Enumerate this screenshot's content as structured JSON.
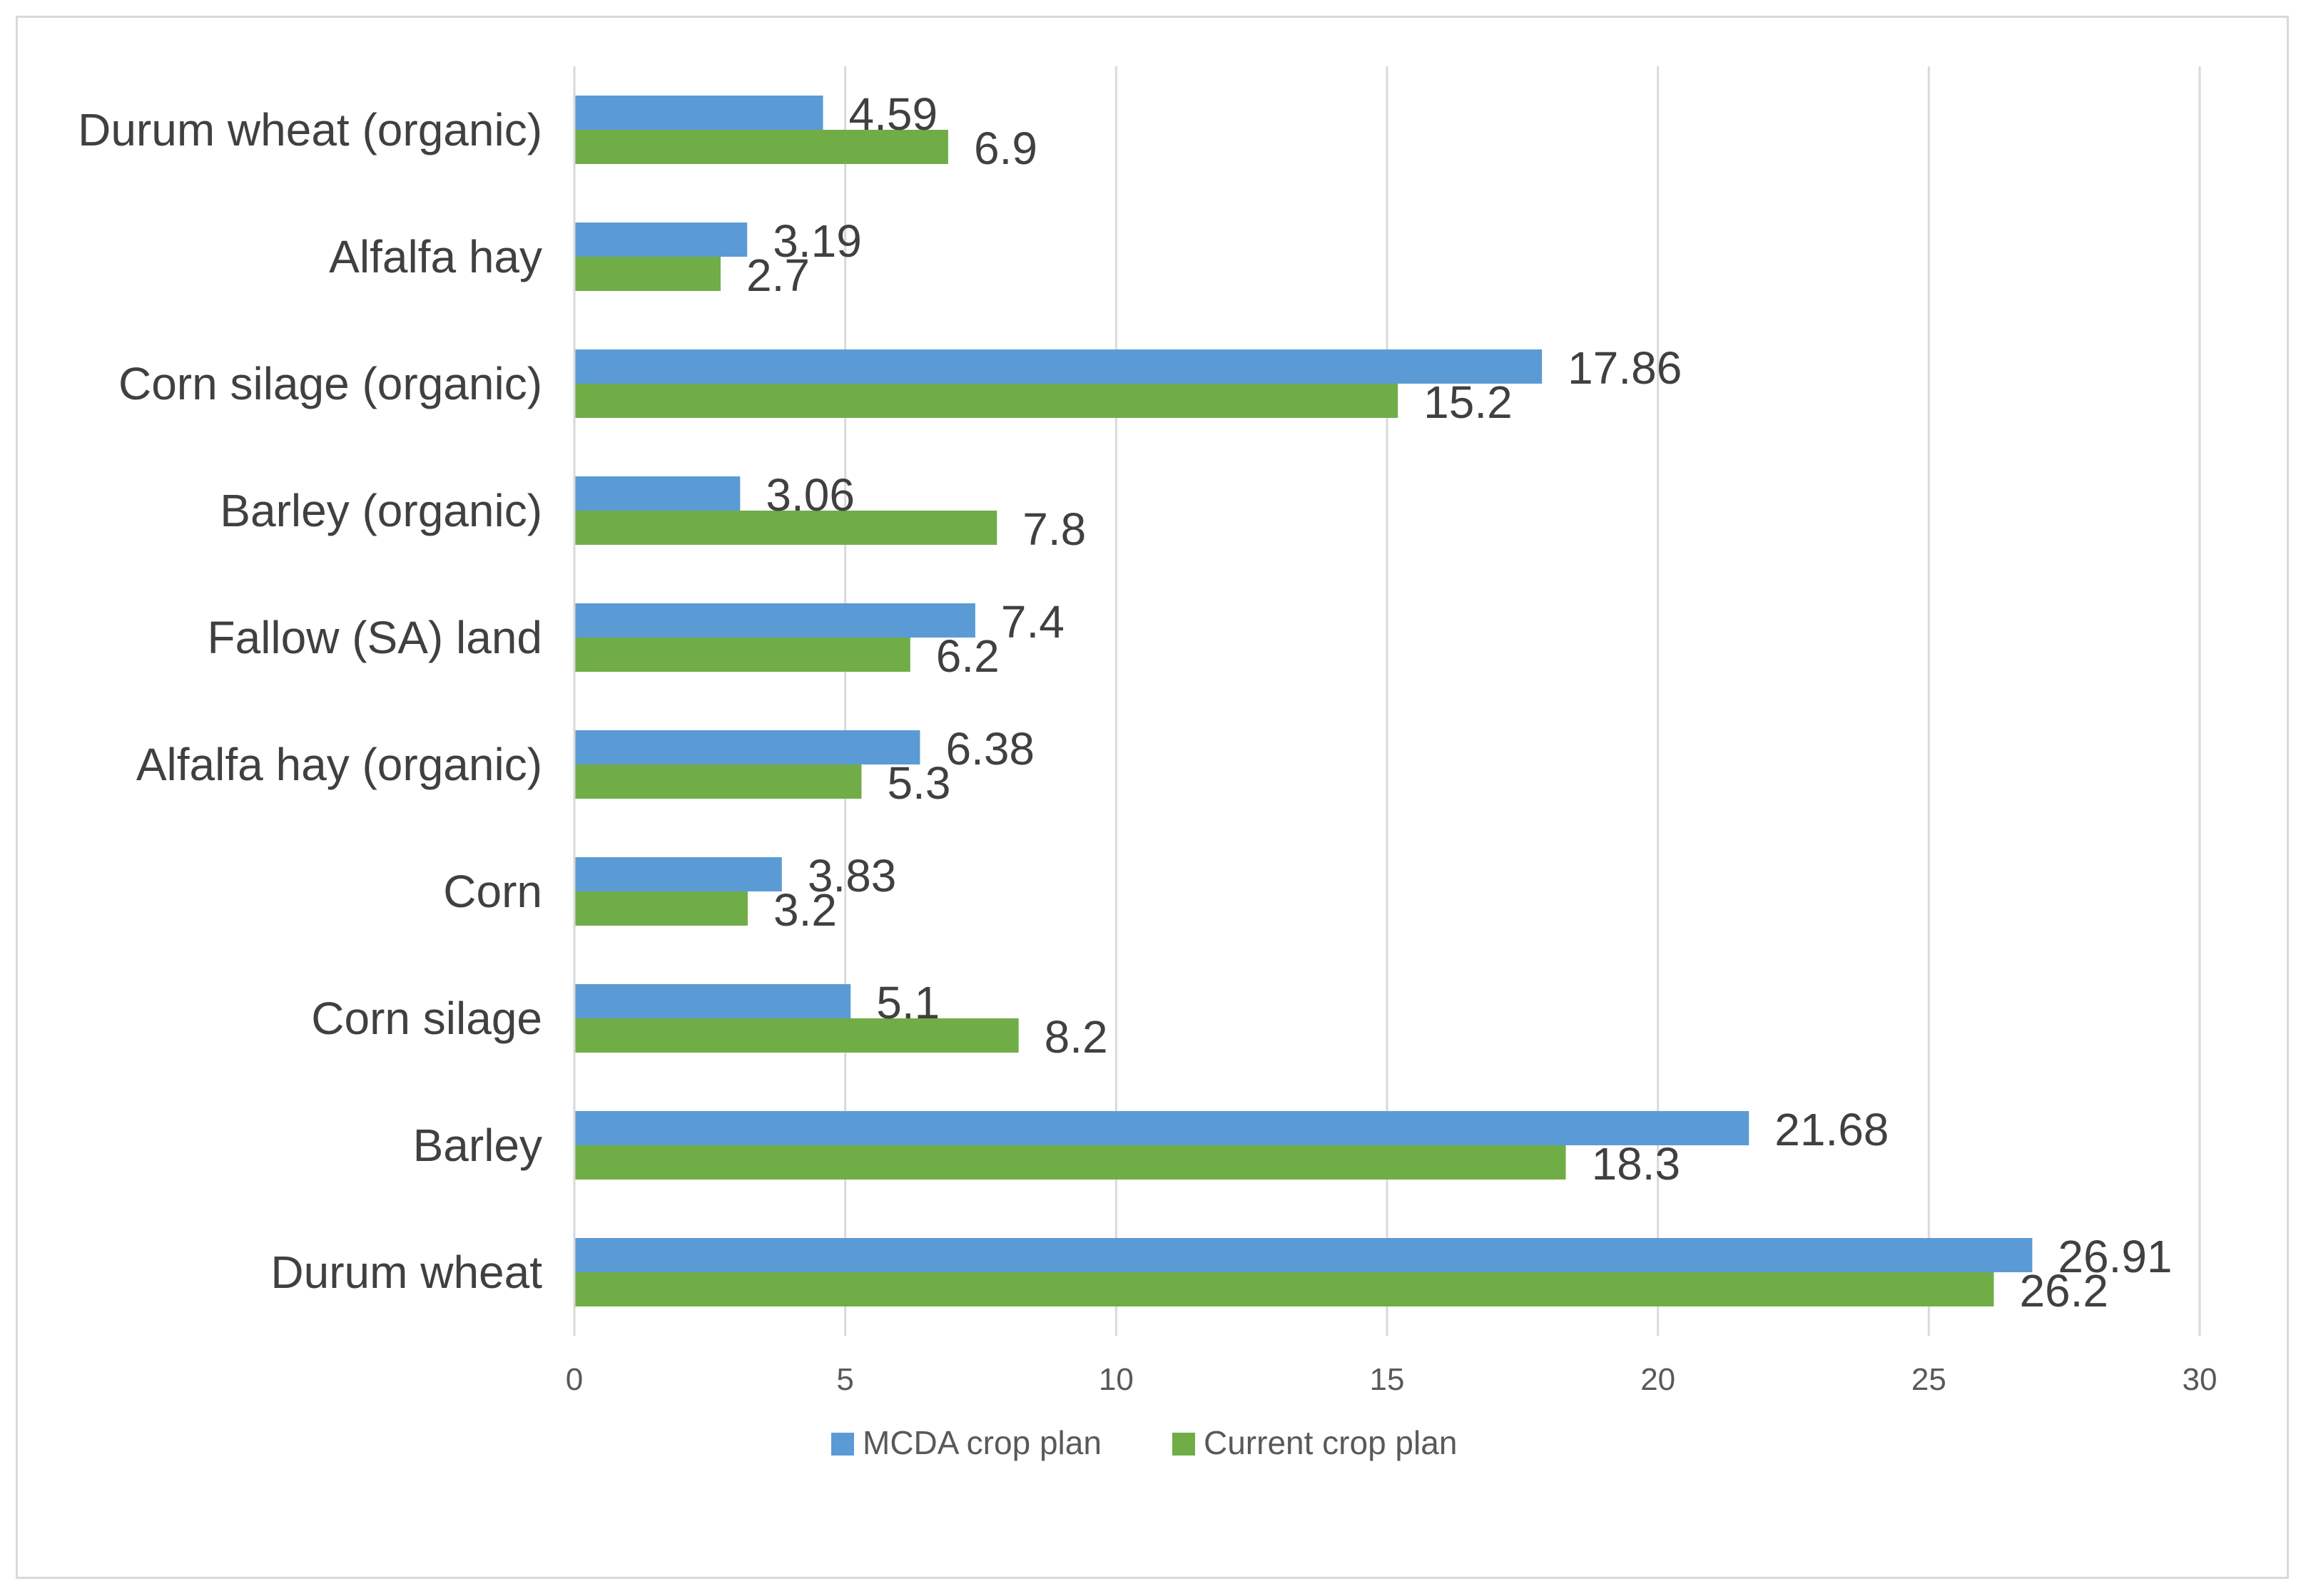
{
  "chart_data": {
    "type": "bar",
    "orientation": "horizontal",
    "title": "",
    "xlabel": "",
    "ylabel": "",
    "xlim": [
      0,
      30
    ],
    "x_ticks": [
      0,
      5,
      10,
      15,
      20,
      25,
      30
    ],
    "grid": true,
    "legend_position": "bottom",
    "categories": [
      "Durum wheat (organic)",
      "Alfalfa hay",
      "Corn silage (organic)",
      "Barley (organic)",
      "Fallow (SA) land",
      "Alfalfa hay (organic)",
      "Corn",
      "Corn silage",
      "Barley",
      "Durum wheat"
    ],
    "series": [
      {
        "name": "MCDA crop plan",
        "color": "#5b9bd5",
        "values": [
          4.59,
          3.19,
          17.86,
          3.06,
          7.4,
          6.38,
          3.83,
          5.1,
          21.68,
          26.91
        ],
        "labels": [
          "4.59",
          "3.19",
          "17.86",
          "3.06",
          "7.4",
          "6.38",
          "3.83",
          "5.1",
          "21.68",
          "26.91"
        ]
      },
      {
        "name": "Current crop plan",
        "color": "#70ad47",
        "values": [
          6.9,
          2.7,
          15.2,
          7.8,
          6.2,
          5.3,
          3.2,
          8.2,
          18.3,
          26.2
        ],
        "labels": [
          "6.9",
          "2.7",
          "15.2",
          "7.8",
          "6.2",
          "5.3",
          "3.2",
          "8.2",
          "18.3",
          "26.2"
        ]
      }
    ]
  }
}
